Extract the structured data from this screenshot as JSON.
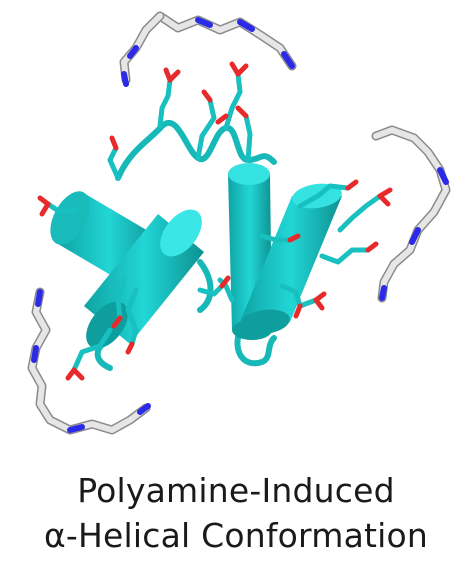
{
  "caption": {
    "line1": "Polyamine-Induced",
    "line2": "α-Helical Conformation"
  },
  "colors": {
    "helix": "#1ec8c8",
    "helix_dark": "#109a9a",
    "carbon_polyamine": "#d9d9d9",
    "nitrogen": "#2222ee",
    "oxygen": "#ee2222"
  }
}
